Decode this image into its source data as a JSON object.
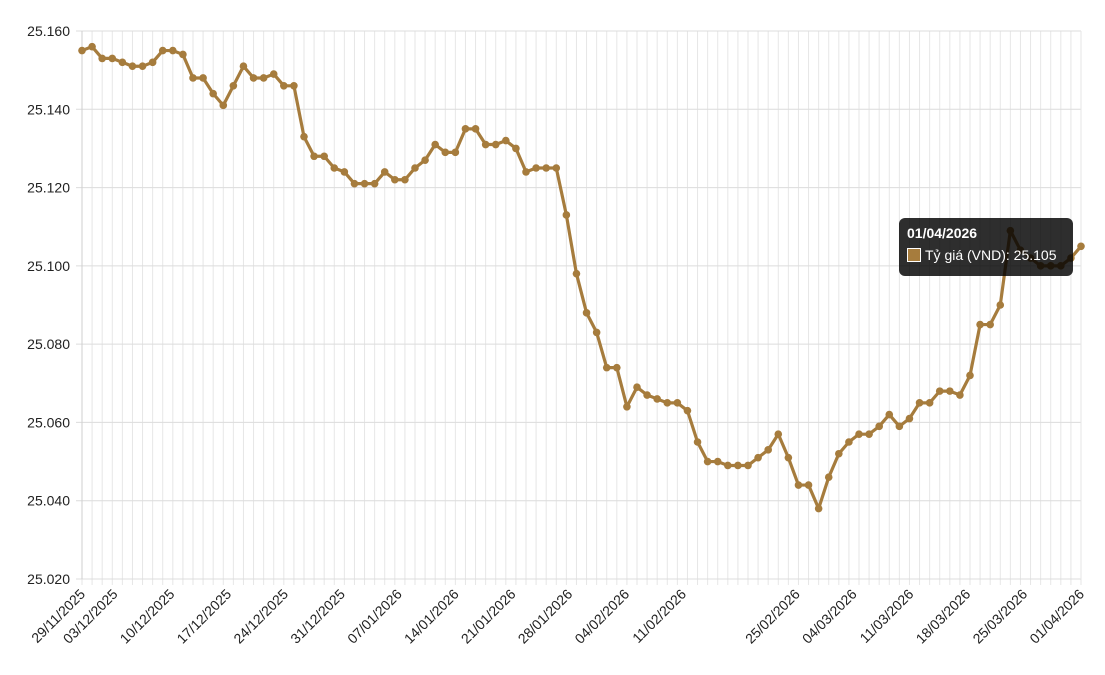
{
  "chart_data": {
    "type": "line",
    "series": [
      {
        "name": "Tỷ giá (VND)",
        "color": "#a67c3d",
        "values": [
          25155,
          25156,
          25153,
          25153,
          25152,
          25151,
          25151,
          25152,
          25155,
          25155,
          25154,
          25148,
          25148,
          25144,
          25141,
          25146,
          25151,
          25148,
          25148,
          25149,
          25146,
          25146,
          25133,
          25128,
          25128,
          25125,
          25124,
          25121,
          25121,
          25121,
          25124,
          25122,
          25122,
          25125,
          25127,
          25131,
          25129,
          25129,
          25135,
          25135,
          25131,
          25131,
          25132,
          25130,
          25124,
          25125,
          25125,
          25125,
          25113,
          25098,
          25088,
          25083,
          25074,
          25074,
          25064,
          25069,
          25067,
          25066,
          25065,
          25065,
          25063,
          25055,
          25050,
          25050,
          25049,
          25049,
          25049,
          25051,
          25053,
          25057,
          25051,
          25044,
          25044,
          25038,
          25046,
          25052,
          25055,
          25057,
          25057,
          25059,
          25062,
          25059,
          25061,
          25065,
          25065,
          25068,
          25068,
          25067,
          25072,
          25085,
          25085,
          25090,
          25109,
          25104,
          25102,
          25100,
          25100,
          25100,
          25102,
          25105
        ]
      }
    ],
    "x_tick_labels": [
      "29/11/2025",
      "03/12/2025",
      "10/12/2025",
      "17/12/2025",
      "24/12/2025",
      "31/12/2025",
      "07/01/2026",
      "14/01/2026",
      "21/01/2026",
      "28/01/2026",
      "04/02/2026",
      "11/02/2026",
      "25/02/2026",
      "04/03/2026",
      "11/03/2026",
      "18/03/2026",
      "25/03/2026",
      "01/04/2026"
    ],
    "y_tick_labels": [
      "25.020",
      "25.040",
      "25.060",
      "25.080",
      "25.100",
      "25.120",
      "25.140",
      "25.160"
    ],
    "ylim": [
      25020,
      25160
    ],
    "grid": true,
    "tooltip": {
      "title": "01/04/2026",
      "label": "Tỷ giá (VND): 25.105",
      "swatch_color": "#a67c3d"
    }
  }
}
